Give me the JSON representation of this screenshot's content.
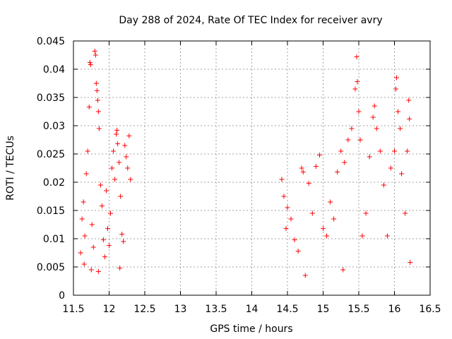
{
  "chart_data": {
    "type": "scatter",
    "title": "Day 288 of 2024, Rate Of TEC Index for receiver avry",
    "xlabel": "GPS time / hours",
    "ylabel": "ROTI / TECUs",
    "xlim": [
      11.5,
      16.5
    ],
    "ylim": [
      0,
      0.045
    ],
    "xticks": [
      "11.5",
      "12",
      "12.5",
      "13",
      "13.5",
      "14",
      "14.5",
      "15",
      "15.5",
      "16",
      "16.5"
    ],
    "yticks": [
      "0",
      "0.005",
      "0.01",
      "0.015",
      "0.02",
      "0.025",
      "0.03",
      "0.035",
      "0.04",
      "0.045"
    ],
    "grid": true,
    "marker": "+",
    "color": "#ff0000",
    "series": [
      {
        "name": "ROTI",
        "points": [
          [
            11.6,
            0.0075
          ],
          [
            11.62,
            0.0135
          ],
          [
            11.64,
            0.0165
          ],
          [
            11.66,
            0.0105
          ],
          [
            11.68,
            0.0215
          ],
          [
            11.7,
            0.0255
          ],
          [
            11.72,
            0.0333
          ],
          [
            11.73,
            0.0412
          ],
          [
            11.74,
            0.0408
          ],
          [
            11.76,
            0.0125
          ],
          [
            11.78,
            0.0085
          ],
          [
            11.8,
            0.0432
          ],
          [
            11.81,
            0.0425
          ],
          [
            11.82,
            0.0375
          ],
          [
            11.83,
            0.0362
          ],
          [
            11.84,
            0.0345
          ],
          [
            11.85,
            0.0325
          ],
          [
            11.86,
            0.0295
          ],
          [
            11.88,
            0.0195
          ],
          [
            11.9,
            0.0158
          ],
          [
            11.92,
            0.0098
          ],
          [
            11.94,
            0.0068
          ],
          [
            11.96,
            0.0185
          ],
          [
            11.98,
            0.0118
          ],
          [
            12.0,
            0.0088
          ],
          [
            12.02,
            0.0145
          ],
          [
            12.04,
            0.0225
          ],
          [
            12.06,
            0.0255
          ],
          [
            12.08,
            0.0205
          ],
          [
            12.1,
            0.0285
          ],
          [
            12.11,
            0.0292
          ],
          [
            12.12,
            0.0268
          ],
          [
            12.14,
            0.0235
          ],
          [
            12.16,
            0.0175
          ],
          [
            12.18,
            0.0108
          ],
          [
            12.2,
            0.0095
          ],
          [
            12.22,
            0.0265
          ],
          [
            12.24,
            0.0245
          ],
          [
            12.26,
            0.0225
          ],
          [
            12.28,
            0.0282
          ],
          [
            12.3,
            0.0205
          ],
          [
            11.65,
            0.0055
          ],
          [
            11.75,
            0.0045
          ],
          [
            11.85,
            0.0042
          ],
          [
            12.15,
            0.0048
          ],
          [
            14.42,
            0.0205
          ],
          [
            14.45,
            0.0175
          ],
          [
            14.48,
            0.0118
          ],
          [
            14.5,
            0.0155
          ],
          [
            14.55,
            0.0135
          ],
          [
            14.6,
            0.0098
          ],
          [
            14.65,
            0.0078
          ],
          [
            14.7,
            0.0225
          ],
          [
            14.72,
            0.0218
          ],
          [
            14.75,
            0.0035
          ],
          [
            14.8,
            0.0198
          ],
          [
            14.85,
            0.0145
          ],
          [
            14.9,
            0.0228
          ],
          [
            14.95,
            0.0248
          ],
          [
            15.0,
            0.0118
          ],
          [
            15.05,
            0.0105
          ],
          [
            15.1,
            0.0165
          ],
          [
            15.15,
            0.0135
          ],
          [
            15.2,
            0.0218
          ],
          [
            15.25,
            0.0255
          ],
          [
            15.28,
            0.0045
          ],
          [
            15.3,
            0.0235
          ],
          [
            15.35,
            0.0275
          ],
          [
            15.4,
            0.0295
          ],
          [
            15.45,
            0.0365
          ],
          [
            15.47,
            0.0422
          ],
          [
            15.48,
            0.0378
          ],
          [
            15.5,
            0.0325
          ],
          [
            15.52,
            0.0275
          ],
          [
            15.55,
            0.0105
          ],
          [
            15.6,
            0.0145
          ],
          [
            15.65,
            0.0245
          ],
          [
            15.7,
            0.0315
          ],
          [
            15.72,
            0.0335
          ],
          [
            15.75,
            0.0295
          ],
          [
            15.8,
            0.0255
          ],
          [
            15.85,
            0.0195
          ],
          [
            15.9,
            0.0105
          ],
          [
            15.95,
            0.0225
          ],
          [
            16.0,
            0.0255
          ],
          [
            16.02,
            0.0365
          ],
          [
            16.03,
            0.0385
          ],
          [
            16.05,
            0.0325
          ],
          [
            16.08,
            0.0295
          ],
          [
            16.1,
            0.0215
          ],
          [
            16.15,
            0.0145
          ],
          [
            16.18,
            0.0255
          ],
          [
            16.2,
            0.0345
          ],
          [
            16.21,
            0.0312
          ],
          [
            16.22,
            0.0058
          ]
        ]
      }
    ]
  }
}
